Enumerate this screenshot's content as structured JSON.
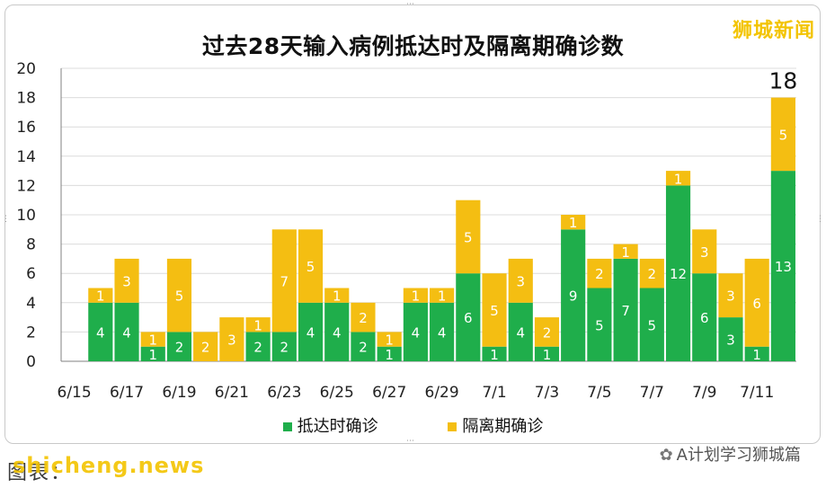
{
  "brand": "狮城新闻",
  "watermark": {
    "source_label": "图表：",
    "site": "shicheng.news"
  },
  "wechat": {
    "icon": "wechat-icon",
    "label": "A计划学习狮城篇"
  },
  "colors": {
    "arrival": "#1fae4b",
    "quarantine": "#f4be12",
    "grid": "#dcdcdc",
    "axis": "#808080"
  },
  "chart_data": {
    "type": "bar",
    "stacked": true,
    "title": "过去28天输入病例抵达时及隔离期确诊数",
    "xlabel": "",
    "ylabel": "",
    "ylim": [
      0,
      20
    ],
    "y_ticks": [
      0,
      2,
      4,
      6,
      8,
      10,
      12,
      14,
      16,
      18,
      20
    ],
    "grid": true,
    "legend_position": "bottom",
    "categories": [
      "6/15",
      "6/16",
      "6/17",
      "6/18",
      "6/19",
      "6/20",
      "6/21",
      "6/22",
      "6/23",
      "6/24",
      "6/25",
      "6/26",
      "6/27",
      "6/28",
      "6/29",
      "6/30",
      "7/1",
      "7/2",
      "7/3",
      "7/4",
      "7/5",
      "7/6",
      "7/7",
      "7/8",
      "7/9",
      "7/10",
      "7/11",
      "7/12"
    ],
    "x_tick_labels": [
      "6/15",
      "6/17",
      "6/19",
      "6/21",
      "6/23",
      "6/25",
      "6/27",
      "6/29",
      "7/1",
      "7/3",
      "7/5",
      "7/7",
      "7/9",
      "7/11"
    ],
    "series": [
      {
        "name": "抵达时确诊",
        "values": [
          0,
          4,
          4,
          1,
          2,
          0,
          0,
          2,
          2,
          4,
          4,
          2,
          1,
          4,
          4,
          6,
          1,
          4,
          1,
          9,
          5,
          7,
          5,
          12,
          6,
          3,
          1,
          13
        ]
      },
      {
        "name": "隔离期确诊",
        "values": [
          0,
          1,
          3,
          1,
          5,
          2,
          3,
          1,
          7,
          5,
          1,
          2,
          1,
          1,
          1,
          5,
          5,
          3,
          2,
          1,
          2,
          1,
          2,
          1,
          3,
          3,
          6,
          5
        ]
      }
    ],
    "annotations": [
      {
        "category": "7/12",
        "text": "18"
      }
    ]
  }
}
